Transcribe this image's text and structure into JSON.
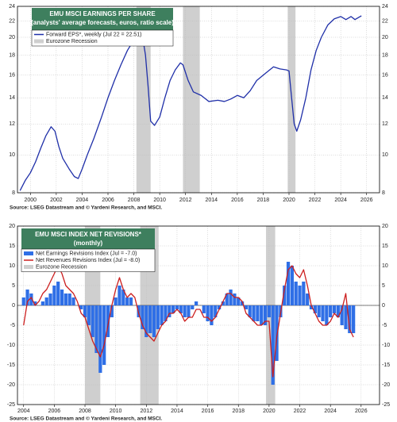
{
  "chart_data": [
    {
      "type": "line",
      "yscale": "log",
      "title": "EMU MSCI EARNINGS PER SHARE",
      "subtitle": "(analysts' average forecasts, euros, ratio scale)",
      "source": "Source: LSEG Datastream and © Yardeni Research, and MSCI.",
      "xlim": [
        1999,
        2027
      ],
      "xticks": [
        2000,
        2002,
        2004,
        2006,
        2008,
        2010,
        2012,
        2014,
        2016,
        2018,
        2020,
        2022,
        2024,
        2026
      ],
      "ylim": [
        8,
        24
      ],
      "yticks": [
        8,
        10,
        12,
        14,
        16,
        18,
        20,
        22,
        24
      ],
      "grid": true,
      "recessions": {
        "name": "Eurozone Recession",
        "color": "#cfcfcf",
        "spans": [
          [
            2008.2,
            2009.3
          ],
          [
            2011.8,
            2013.1
          ],
          [
            2019.9,
            2020.5
          ]
        ]
      },
      "x": [
        1999.2,
        1999.6,
        2000.0,
        2000.4,
        2000.8,
        2001.2,
        2001.6,
        2001.9,
        2002.2,
        2002.5,
        2003.0,
        2003.4,
        2003.7,
        2004.0,
        2004.4,
        2004.9,
        2005.5,
        2006.0,
        2006.5,
        2007.0,
        2007.5,
        2008.0,
        2008.3,
        2008.7,
        2008.9,
        2009.1,
        2009.3,
        2009.6,
        2010.0,
        2010.4,
        2010.8,
        2011.2,
        2011.6,
        2011.8,
        2012.2,
        2012.6,
        2013.2,
        2013.8,
        2014.5,
        2015.0,
        2015.5,
        2016.0,
        2016.5,
        2017.0,
        2017.5,
        2018.2,
        2018.8,
        2019.3,
        2019.8,
        2020.0,
        2020.2,
        2020.4,
        2020.6,
        2020.9,
        2021.3,
        2021.7,
        2022.1,
        2022.5,
        2023.0,
        2023.5,
        2024.0,
        2024.4,
        2024.8,
        2025.1,
        2025.4,
        2025.6
      ],
      "series": [
        {
          "name": "Forward EPS*, weekly (Jul 22 = 22.51)",
          "color": "#1f2fa8",
          "kind": "line",
          "values": [
            8.1,
            8.6,
            9.0,
            9.6,
            10.4,
            11.2,
            11.8,
            11.5,
            10.5,
            9.8,
            9.2,
            8.8,
            8.7,
            9.2,
            10.0,
            11.0,
            12.5,
            14.0,
            15.5,
            17.0,
            18.5,
            19.7,
            20.0,
            19.8,
            18.0,
            15.0,
            12.2,
            11.9,
            12.5,
            14.0,
            15.5,
            16.5,
            17.2,
            17.0,
            15.5,
            14.5,
            14.2,
            13.7,
            13.8,
            13.7,
            13.9,
            14.2,
            14.0,
            14.6,
            15.5,
            16.2,
            16.8,
            16.6,
            16.5,
            16.4,
            14.0,
            12.0,
            11.5,
            12.3,
            14.0,
            16.5,
            18.5,
            20.0,
            21.5,
            22.3,
            22.6,
            22.2,
            22.6,
            22.2,
            22.5,
            22.7
          ]
        }
      ]
    },
    {
      "type": "combo",
      "yscale": "linear",
      "title": "EMU MSCI INDEX NET REVISIONS*",
      "subtitle": "(monthly)",
      "source": "Source: LSEG Datastream and © Yardeni Research, and MSCI.",
      "xlim": [
        2003.6,
        2027.2
      ],
      "xticks": [
        2004,
        2006,
        2008,
        2010,
        2012,
        2014,
        2016,
        2018,
        2020,
        2022,
        2024,
        2026
      ],
      "ylim": [
        -25,
        20
      ],
      "yticks": [
        -25,
        -20,
        -15,
        -10,
        -5,
        0,
        5,
        10,
        15,
        20
      ],
      "grid": true,
      "recessions": {
        "name": "Eurozone Recession",
        "color": "#cfcfcf",
        "spans": [
          [
            2008.0,
            2009.0
          ],
          [
            2011.6,
            2012.8
          ],
          [
            2019.8,
            2020.4
          ]
        ]
      },
      "x": [
        2004,
        2004.25,
        2004.5,
        2004.75,
        2005,
        2005.25,
        2005.5,
        2005.75,
        2006,
        2006.25,
        2006.5,
        2006.75,
        2007,
        2007.25,
        2007.5,
        2007.75,
        2008,
        2008.25,
        2008.5,
        2008.75,
        2009,
        2009.25,
        2009.5,
        2009.75,
        2010,
        2010.25,
        2010.5,
        2010.75,
        2011,
        2011.25,
        2011.5,
        2011.75,
        2012,
        2012.25,
        2012.5,
        2012.75,
        2013,
        2013.25,
        2013.5,
        2013.75,
        2014,
        2014.25,
        2014.5,
        2014.75,
        2015,
        2015.25,
        2015.5,
        2015.75,
        2016,
        2016.25,
        2016.5,
        2016.75,
        2017,
        2017.25,
        2017.5,
        2017.75,
        2018,
        2018.25,
        2018.5,
        2018.75,
        2019,
        2019.25,
        2019.5,
        2019.75,
        2020,
        2020.25,
        2020.5,
        2020.75,
        2021,
        2021.25,
        2021.5,
        2021.75,
        2022,
        2022.25,
        2022.5,
        2022.75,
        2023,
        2023.25,
        2023.5,
        2023.75,
        2024,
        2024.25,
        2024.5,
        2024.75,
        2025,
        2025.25,
        2025.5
      ],
      "series": [
        {
          "name": "Net Earnings Revisions Index (Jul = -7.0)",
          "color": "#2f6fe6",
          "kind": "bar",
          "values": [
            2,
            4,
            3,
            1,
            0,
            1,
            2,
            3,
            5,
            6,
            4,
            3,
            3,
            2,
            0,
            -1,
            -3,
            -5,
            -8,
            -12,
            -17,
            -15,
            -8,
            -3,
            2,
            5,
            4,
            2,
            2,
            0,
            -3,
            -6,
            -8,
            -7,
            -8,
            -6,
            -5,
            -4,
            -3,
            -2,
            -1,
            -2,
            -3,
            -3,
            -1,
            1,
            0,
            -2,
            -4,
            -5,
            -3,
            -1,
            1,
            3,
            4,
            3,
            2,
            1,
            -1,
            -3,
            -4,
            -4,
            -5,
            -5,
            -3,
            -20,
            -14,
            -3,
            5,
            11,
            10,
            6,
            5,
            6,
            3,
            -1,
            -2,
            -3,
            -4,
            -5,
            -3,
            -2,
            -3,
            -5,
            -6,
            -7,
            -7
          ]
        },
        {
          "name": "Net Revenues Revisions Index (Jul = -8.0)",
          "color": "#cc1f1f",
          "kind": "line",
          "values": [
            -5,
            1,
            2,
            0,
            1,
            3,
            4,
            6,
            8,
            10,
            8,
            5,
            4,
            3,
            1,
            -2,
            -3,
            -6,
            -9,
            -11,
            -13,
            -10,
            -5,
            0,
            4,
            7,
            4,
            2,
            3,
            2,
            -2,
            -5,
            -7,
            -8,
            -9,
            -7,
            -5,
            -4,
            -2,
            -2,
            -1,
            -2,
            -4,
            -3,
            -3,
            -1,
            -1,
            -3,
            -3,
            -4,
            -3,
            -1,
            1,
            3,
            3,
            2,
            2,
            1,
            -2,
            -3,
            -4,
            -5,
            -5,
            -4,
            -4,
            -18,
            -8,
            -2,
            4,
            9,
            10,
            8,
            7,
            9,
            5,
            0,
            -2,
            -4,
            -5,
            -5,
            -4,
            -2,
            -3,
            -1,
            3,
            -6,
            -8
          ]
        }
      ]
    }
  ]
}
